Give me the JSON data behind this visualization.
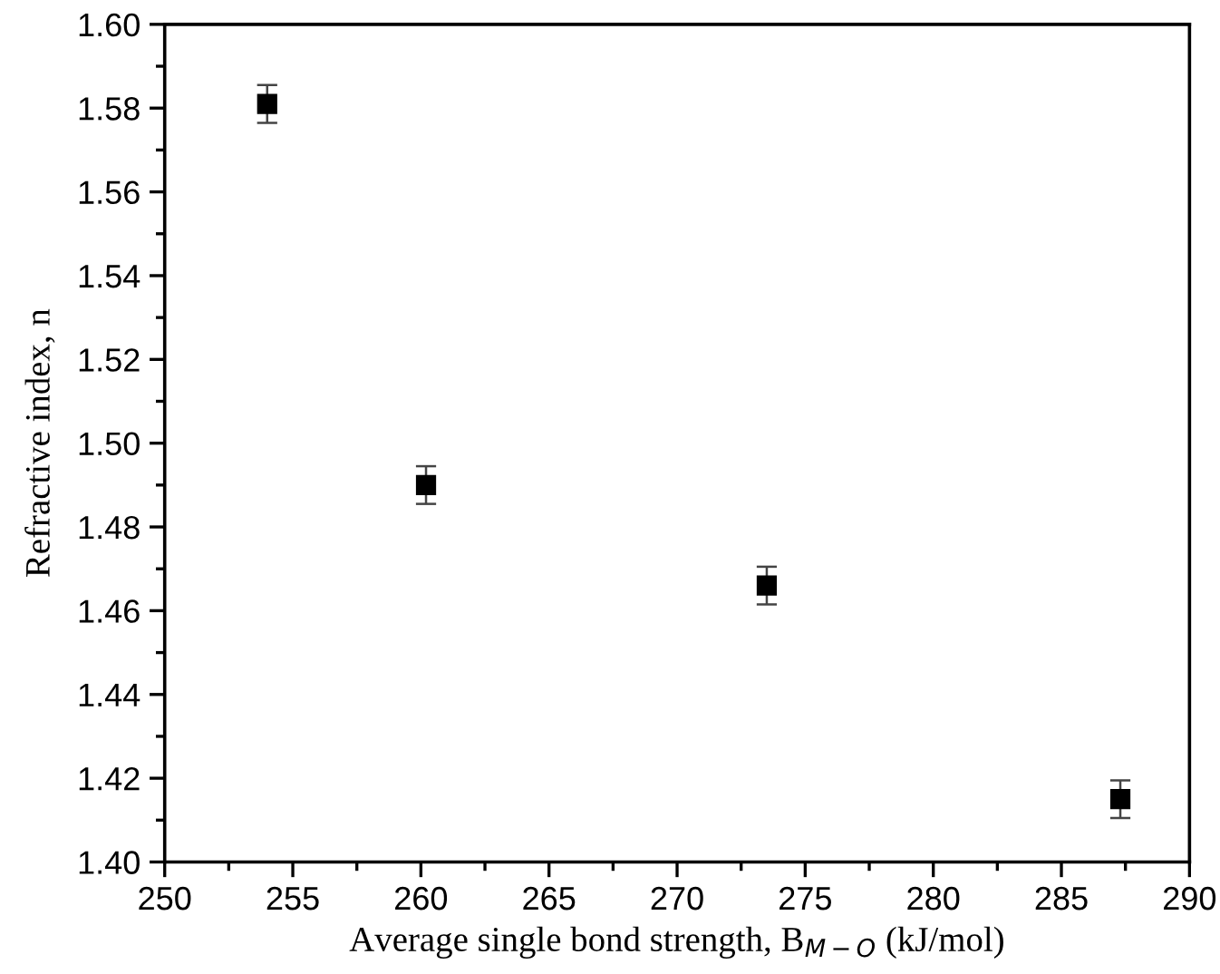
{
  "chart_data": {
    "type": "scatter",
    "xlabel": "Average single bond strength, B$_{M−O}$ (kJ/mol)",
    "ylabel": "Refractive index, n",
    "x": [
      254.0,
      260.2,
      273.5,
      287.3
    ],
    "series": [
      {
        "color": "#000000",
        "values": [
          1.581,
          1.49,
          1.466,
          1.415
        ],
        "errors": [
          0.0045,
          0.0045,
          0.0045,
          0.0045
        ]
      }
    ],
    "marker": "square",
    "xlim": [
      250,
      290
    ],
    "xticks": [
      250,
      255,
      260,
      265,
      270,
      275,
      280,
      285,
      290
    ],
    "ylim": [
      1.4,
      1.6
    ],
    "yticks": [
      {
        "value": 1.4,
        "label": "1.40"
      },
      {
        "value": 1.42,
        "label": "1.42"
      },
      {
        "value": 1.44,
        "label": "1.44"
      },
      {
        "value": 1.46,
        "label": "1.46"
      },
      {
        "value": 1.48,
        "label": "1.48"
      },
      {
        "value": 1.5,
        "label": "1.50"
      },
      {
        "value": 1.52,
        "label": "1.52"
      },
      {
        "value": 1.54,
        "label": "1.54"
      },
      {
        "value": 1.56,
        "label": "1.56"
      },
      {
        "value": 1.58,
        "label": "1.58"
      },
      {
        "value": 1.6,
        "label": "1.60"
      }
    ],
    "grid": false
  }
}
